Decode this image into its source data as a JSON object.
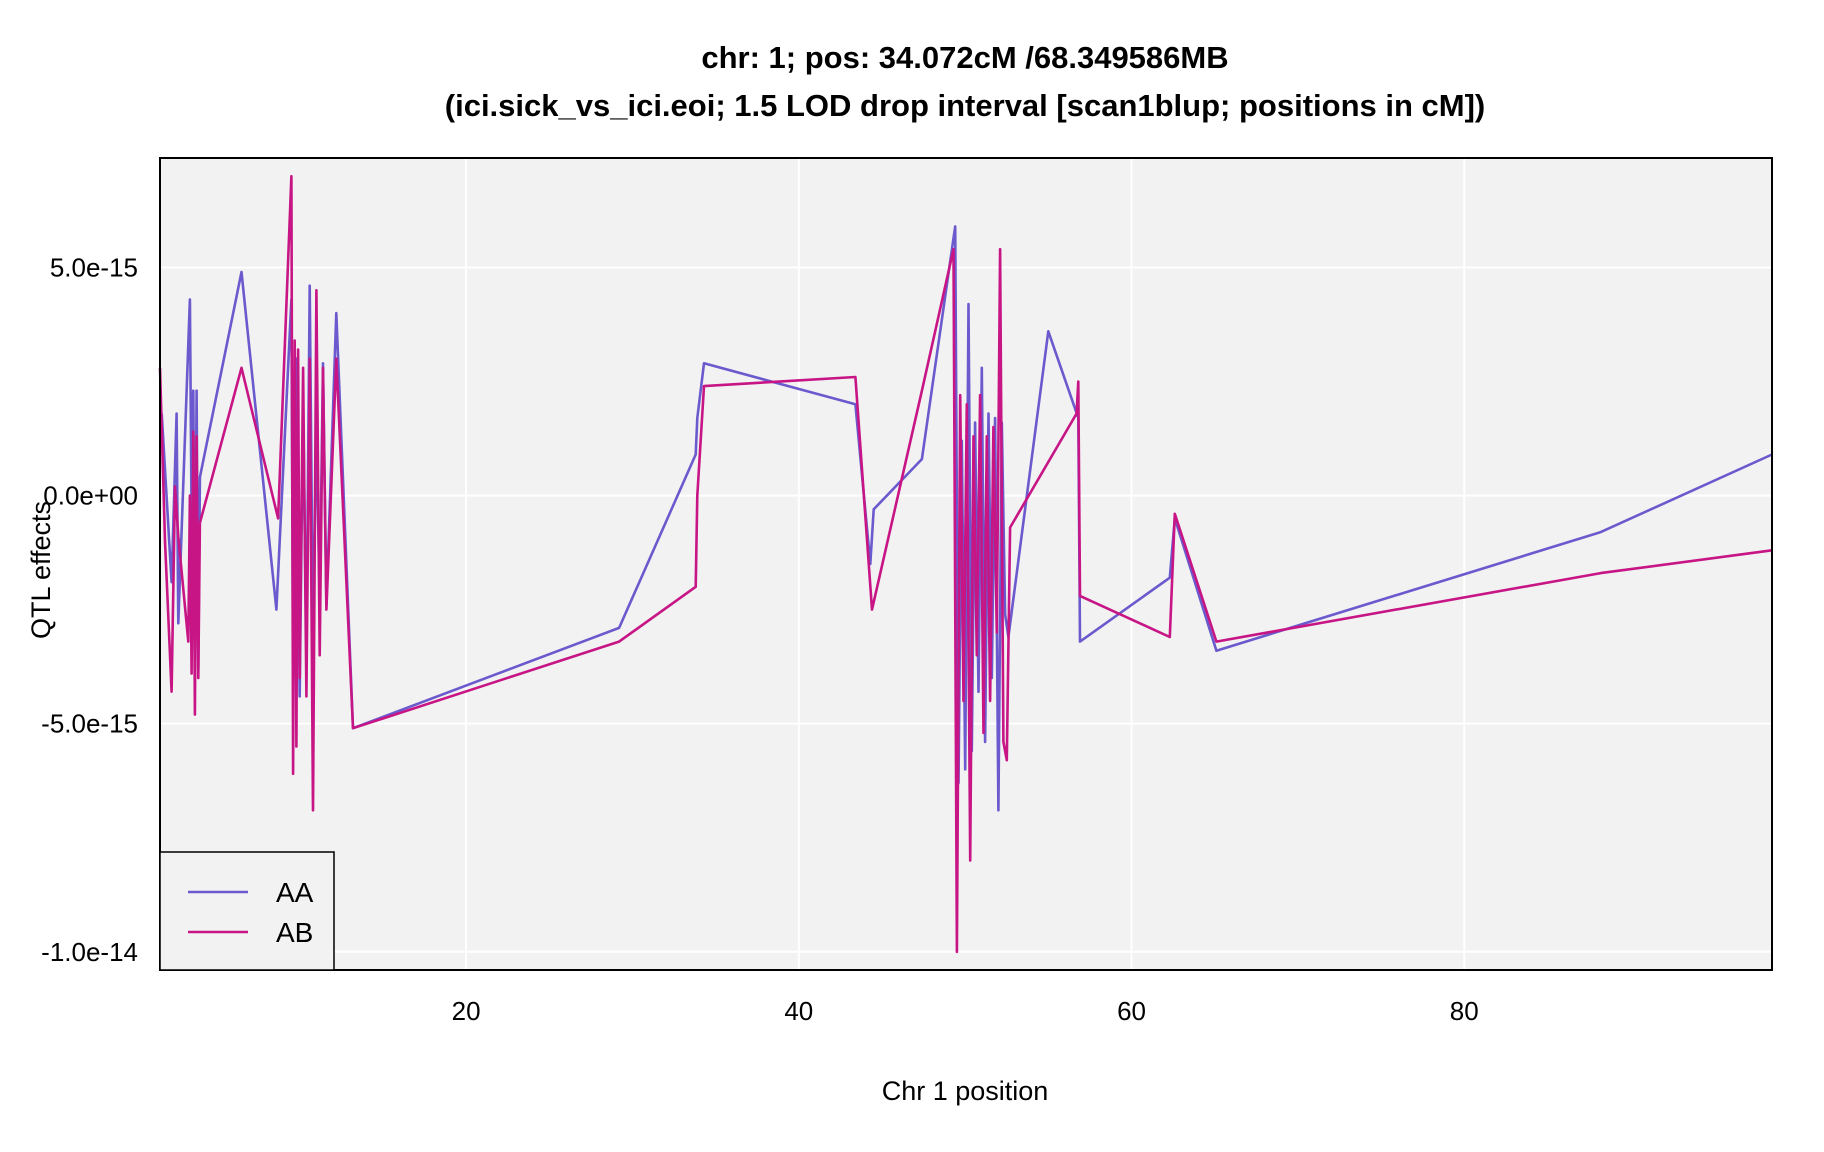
{
  "chart_data": {
    "type": "line",
    "title": "chr: 1; pos: 34.072cM /68.349586MB",
    "subtitle": "(ici.sick_vs_ici.eoi; 1.5 LOD drop interval [scan1blup; positions in cM])",
    "xlabel": "Chr 1 position",
    "ylabel": "QTL effects",
    "xlim": [
      1.6,
      98.5
    ],
    "ylim": [
      -10.4,
      7.4
    ],
    "y_unit_note": "y values in units of 1e-15",
    "xticks": [
      20,
      40,
      60,
      80
    ],
    "xtick_labels": [
      "20",
      "40",
      "60",
      "80"
    ],
    "yticks": [
      5,
      0,
      -5,
      -10
    ],
    "ytick_labels": [
      "5.0e-15",
      "0.0e+00",
      "-5.0e-15",
      "-1.0e-14"
    ],
    "grid": true,
    "legend_position": "bottom-left",
    "series": [
      {
        "name": "AA",
        "color": "#6a5acd",
        "x": [
          1.7,
          2.3,
          2.6,
          2.7,
          3.4,
          3.5,
          3.6,
          3.7,
          3.8,
          3.9,
          4.0,
          6.5,
          8.6,
          9.5,
          9.6,
          9.8,
          10.0,
          10.2,
          10.4,
          10.6,
          10.8,
          11.0,
          11.2,
          11.4,
          11.6,
          12.2,
          13.2,
          29.2,
          33.8,
          33.9,
          34.3,
          43.4,
          44.3,
          44.5,
          47.4,
          49.4,
          49.6,
          49.8,
          50.0,
          50.2,
          50.4,
          50.6,
          50.8,
          51.0,
          51.2,
          51.4,
          51.6,
          51.8,
          52.0,
          52.2,
          52.4,
          52.6,
          55.0,
          56.8,
          56.9,
          62.3,
          62.6,
          65.1,
          88.2,
          98.5
        ],
        "y": [
          1.8,
          -1.9,
          1.8,
          -2.8,
          4.3,
          -0.5,
          2.3,
          -3.6,
          2.3,
          -3.8,
          0.4,
          4.9,
          -2.5,
          4.3,
          -3.9,
          3.0,
          -4.4,
          2.0,
          -3.5,
          4.6,
          -3.2,
          1.6,
          -2.4,
          2.9,
          -2.4,
          4.0,
          -5.1,
          -2.9,
          0.9,
          1.7,
          2.9,
          2.0,
          -1.5,
          -0.3,
          0.8,
          5.9,
          -6.3,
          1.2,
          -6.0,
          4.2,
          -5.6,
          1.6,
          -4.3,
          2.8,
          -5.4,
          1.8,
          -4.0,
          1.7,
          -6.9,
          1.6,
          -2.6,
          -3.1,
          3.6,
          1.7,
          -3.2,
          -1.8,
          -0.5,
          -3.4,
          -0.8,
          0.9
        ]
      },
      {
        "name": "AB",
        "color": "#c71585",
        "x": [
          1.6,
          1.9,
          2.3,
          2.5,
          2.7,
          3.3,
          3.4,
          3.5,
          3.6,
          3.7,
          3.8,
          3.9,
          4.0,
          6.5,
          8.7,
          9.5,
          9.6,
          9.7,
          9.8,
          9.9,
          10.0,
          10.2,
          10.4,
          10.6,
          10.8,
          11.0,
          11.2,
          11.4,
          11.6,
          12.2,
          13.2,
          29.2,
          33.8,
          33.9,
          34.3,
          43.4,
          44.4,
          47.4,
          49.3,
          49.5,
          49.7,
          49.9,
          50.1,
          50.3,
          50.5,
          50.7,
          50.9,
          51.1,
          51.3,
          51.5,
          51.7,
          51.9,
          52.1,
          52.3,
          52.5,
          52.7,
          56.7,
          56.8,
          56.9,
          62.3,
          62.6,
          65.1,
          88.2,
          98.5
        ],
        "y": [
          2.8,
          -1.0,
          -4.3,
          0.2,
          -0.9,
          -3.2,
          0.0,
          -3.9,
          1.4,
          -4.8,
          1.3,
          -4.0,
          -0.6,
          2.8,
          -0.5,
          7.0,
          -6.1,
          3.4,
          -5.5,
          3.2,
          -4.0,
          2.8,
          -4.4,
          3.0,
          -6.9,
          4.5,
          -3.5,
          2.8,
          -2.5,
          3.0,
          -5.1,
          -3.2,
          -2.0,
          0.0,
          2.4,
          2.6,
          -2.5,
          2.3,
          5.4,
          -10.0,
          2.2,
          -4.5,
          2.0,
          -8.0,
          1.3,
          -3.5,
          2.2,
          -5.2,
          1.3,
          -4.5,
          1.5,
          -3.0,
          5.4,
          -5.4,
          -5.8,
          -0.7,
          1.8,
          2.5,
          -2.2,
          -3.1,
          -0.4,
          -3.2,
          -1.7,
          -1.2
        ]
      }
    ]
  }
}
